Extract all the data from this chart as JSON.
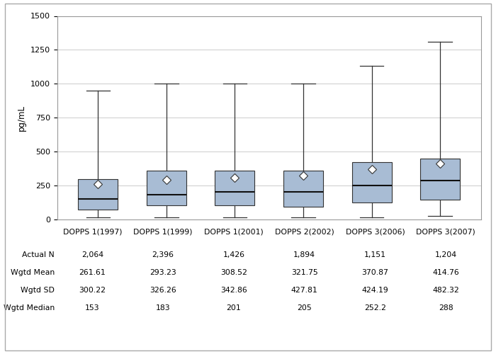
{
  "ylabel": "pg/mL",
  "categories": [
    "DOPPS 1(1997)",
    "DOPPS 1(1999)",
    "DOPPS 1(2001)",
    "DOPPS 2(2002)",
    "DOPPS 3(2006)",
    "DOPPS 3(2007)"
  ],
  "ylim": [
    0,
    1500
  ],
  "yticks": [
    0,
    250,
    500,
    750,
    1000,
    1250,
    1500
  ],
  "box_color": "#a8bcd4",
  "box_edge_color": "#333333",
  "whisker_color": "#333333",
  "median_color": "#111111",
  "mean_marker_color": "#ffffff",
  "mean_marker_edge_color": "#333333",
  "boxes": [
    {
      "q1": 75,
      "median": 153,
      "q3": 300,
      "whisker_low": 18,
      "whisker_high": 950,
      "mean": 261.61
    },
    {
      "q1": 105,
      "median": 183,
      "q3": 360,
      "whisker_low": 18,
      "whisker_high": 1000,
      "mean": 293.23
    },
    {
      "q1": 105,
      "median": 201,
      "q3": 360,
      "whisker_low": 18,
      "whisker_high": 1000,
      "mean": 308.52
    },
    {
      "q1": 95,
      "median": 205,
      "q3": 360,
      "whisker_low": 18,
      "whisker_high": 1000,
      "mean": 321.75
    },
    {
      "q1": 125,
      "median": 252,
      "q3": 420,
      "whisker_low": 18,
      "whisker_high": 1130,
      "mean": 370.87
    },
    {
      "q1": 145,
      "median": 288,
      "q3": 450,
      "whisker_low": 28,
      "whisker_high": 1310,
      "mean": 414.76
    }
  ],
  "table_rows": [
    {
      "label": "Actual N",
      "values": [
        "2,064",
        "2,396",
        "1,426",
        "1,894",
        "1,151",
        "1,204"
      ]
    },
    {
      "label": "Wgtd Mean",
      "values": [
        "261.61",
        "293.23",
        "308.52",
        "321.75",
        "370.87",
        "414.76"
      ]
    },
    {
      "label": "Wgtd SD",
      "values": [
        "300.22",
        "326.26",
        "342.86",
        "427.81",
        "424.19",
        "482.32"
      ]
    },
    {
      "label": "Wgtd Median",
      "values": [
        "153",
        "183",
        "201",
        "205",
        "252.2",
        "288"
      ]
    }
  ],
  "background_color": "#ffffff",
  "grid_color": "#cccccc",
  "plot_font_size": 8.0,
  "table_font_size": 7.8,
  "label_font_size": 7.8,
  "outer_border_color": "#aaaaaa"
}
